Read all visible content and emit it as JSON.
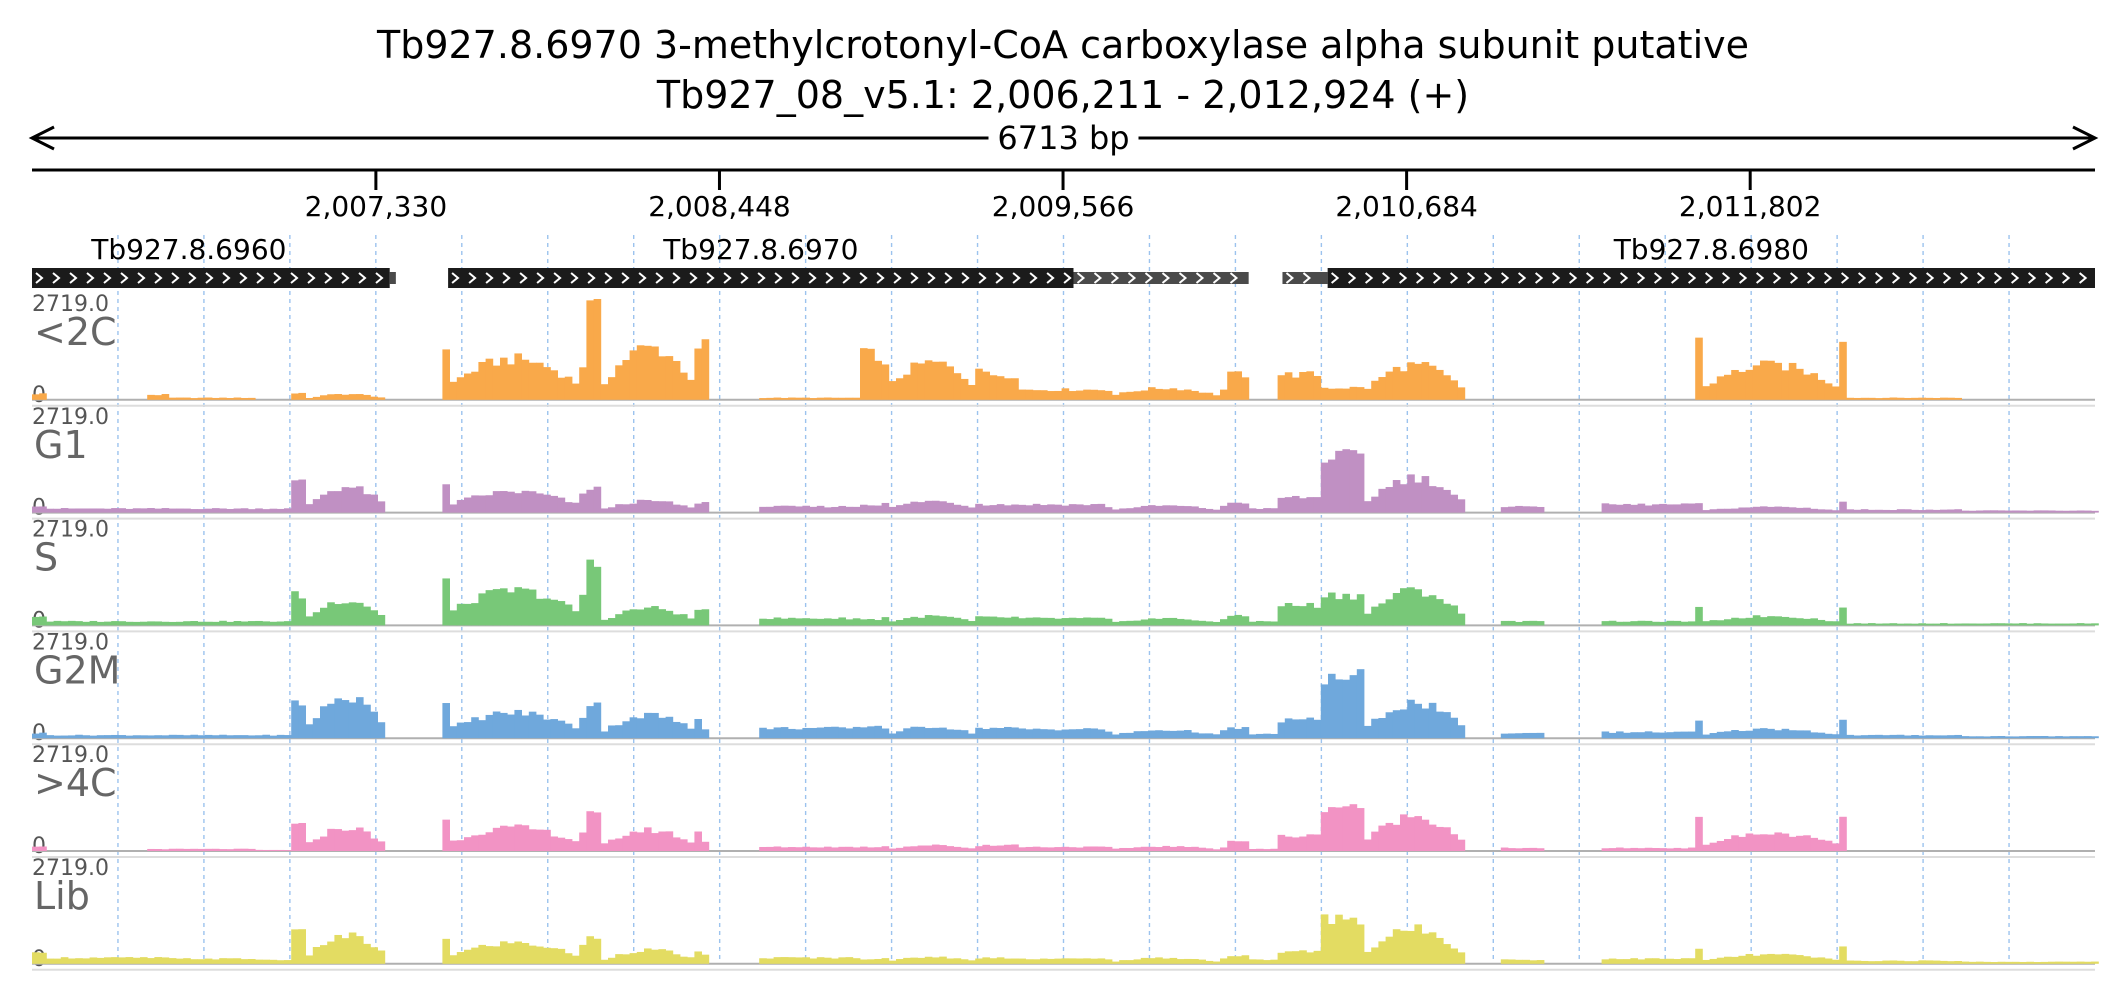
{
  "header": {
    "gene_title": "Tb927.8.6970  3-methylcrotonyl-CoA carboxylase alpha subunit  putative",
    "locus": "Tb927_08_v5.1: 2,006,211 - 2,012,924 (+)"
  },
  "chart_data": {
    "type": "area",
    "title": "Tb927.8.6970  3-methylcrotonyl-CoA carboxylase alpha subunit  putative",
    "subtitle": "Tb927_08_v5.1: 2,006,211 - 2,012,924 (+)",
    "span_label": "6713 bp",
    "xlim": [
      2006211,
      2012924
    ],
    "ylim": [
      0,
      2719.0
    ],
    "ymax_label": "2719.0",
    "ymin_label": "0",
    "x_ticks": [
      {
        "pos": 2007330,
        "label": "2,007,330"
      },
      {
        "pos": 2008448,
        "label": "2,008,448"
      },
      {
        "pos": 2009566,
        "label": "2,009,566"
      },
      {
        "pos": 2010684,
        "label": "2,010,684"
      },
      {
        "pos": 2011802,
        "label": "2,011,802"
      }
    ],
    "genes": [
      {
        "name": "Tb927.8.6960",
        "cds": [
          2006211,
          2007375
        ],
        "utr": [
          2007375,
          2007395
        ]
      },
      {
        "name": "Tb927.8.6970",
        "cds": [
          2007565,
          2009600
        ],
        "utr": [
          2009600,
          2010170
        ]
      },
      {
        "name": "Tb927.8.6980",
        "cds": [
          2010427,
          2012924
        ],
        "utr": [
          2010280,
          2010427
        ]
      }
    ],
    "segments": [
      {
        "start": 2006211,
        "end": 2006250,
        "base": [
          0.06,
          0.07,
          0.09,
          0.05,
          0.05,
          0.1
        ],
        "shape": "flat",
        "edges": [
          1,
          1
        ]
      },
      {
        "start": 2006250,
        "end": 2006580,
        "base": [
          0.0,
          0.04,
          0.04,
          0.03,
          0.0,
          0.06
        ],
        "shape": "flat",
        "edges": [
          1,
          1
        ]
      },
      {
        "start": 2006580,
        "end": 2006660,
        "base": [
          0.05,
          0.04,
          0.04,
          0.03,
          0.02,
          0.06
        ],
        "shape": "flat",
        "edges": [
          1,
          1
        ]
      },
      {
        "start": 2006660,
        "end": 2006940,
        "base": [
          0.02,
          0.04,
          0.04,
          0.03,
          0.02,
          0.05
        ],
        "shape": "flat",
        "edges": [
          1,
          1
        ]
      },
      {
        "start": 2006940,
        "end": 2007050,
        "base": [
          0.0,
          0.04,
          0.04,
          0.03,
          0.01,
          0.04
        ],
        "shape": "flat",
        "edges": [
          1,
          1
        ]
      },
      {
        "start": 2007050,
        "end": 2007100,
        "base": [
          0.06,
          0.3,
          0.3,
          0.35,
          0.25,
          0.3
        ],
        "shape": "flat",
        "edges": [
          1,
          1
        ]
      },
      {
        "start": 2007100,
        "end": 2007370,
        "base": [
          0.05,
          0.22,
          0.22,
          0.35,
          0.2,
          0.24
        ],
        "shape": "arch",
        "edges": [
          1.2,
          1.6
        ]
      },
      {
        "start": 2007540,
        "end": 2008020,
        "base": [
          0.35,
          0.18,
          0.3,
          0.22,
          0.2,
          0.18
        ],
        "shape": "arch",
        "edges": [
          1.5,
          1.0
        ]
      },
      {
        "start": 2008020,
        "end": 2008060,
        "base": [
          0.9,
          0.25,
          0.6,
          0.35,
          0.35,
          0.25
        ],
        "shape": "flat",
        "edges": [
          1,
          1
        ]
      },
      {
        "start": 2008060,
        "end": 2008380,
        "base": [
          0.45,
          0.1,
          0.15,
          0.2,
          0.18,
          0.12
        ],
        "shape": "arch",
        "edges": [
          1.0,
          1.0
        ]
      },
      {
        "start": 2008380,
        "end": 2008420,
        "base": [
          0.58,
          0.1,
          0.15,
          0.1,
          0.1,
          0.08
        ],
        "shape": "flat",
        "edges": [
          1,
          1
        ]
      },
      {
        "start": 2008570,
        "end": 2008900,
        "base": [
          0.02,
          0.06,
          0.07,
          0.1,
          0.04,
          0.06
        ],
        "shape": "flat",
        "edges": [
          1,
          1
        ]
      },
      {
        "start": 2008900,
        "end": 2008980,
        "base": [
          0.45,
          0.08,
          0.06,
          0.12,
          0.04,
          0.05
        ],
        "shape": "flat",
        "edges": [
          1,
          1
        ]
      },
      {
        "start": 2008980,
        "end": 2009300,
        "base": [
          0.32,
          0.1,
          0.08,
          0.1,
          0.05,
          0.06
        ],
        "shape": "arch",
        "edges": [
          1.0,
          1.0
        ]
      },
      {
        "start": 2009300,
        "end": 2009420,
        "base": [
          0.25,
          0.08,
          0.08,
          0.1,
          0.06,
          0.06
        ],
        "shape": "flat",
        "edges": [
          1,
          1
        ]
      },
      {
        "start": 2009420,
        "end": 2009700,
        "base": [
          0.1,
          0.08,
          0.07,
          0.09,
          0.04,
          0.05
        ],
        "shape": "flat",
        "edges": [
          1,
          1
        ]
      },
      {
        "start": 2009700,
        "end": 2010100,
        "base": [
          0.1,
          0.06,
          0.06,
          0.07,
          0.04,
          0.05
        ],
        "shape": "arch",
        "edges": [
          1.0,
          1.0
        ]
      },
      {
        "start": 2010100,
        "end": 2010170,
        "base": [
          0.25,
          0.1,
          0.1,
          0.1,
          0.1,
          0.08
        ],
        "shape": "flat",
        "edges": [
          1,
          1
        ]
      },
      {
        "start": 2010170,
        "end": 2010270,
        "base": [
          0.0,
          0.04,
          0.04,
          0.04,
          0.02,
          0.04
        ],
        "shape": "flat",
        "edges": [
          1,
          1
        ]
      },
      {
        "start": 2010270,
        "end": 2010410,
        "base": [
          0.25,
          0.15,
          0.2,
          0.18,
          0.15,
          0.12
        ],
        "shape": "flat",
        "edges": [
          1,
          1
        ]
      },
      {
        "start": 2010410,
        "end": 2010540,
        "base": [
          0.12,
          0.55,
          0.3,
          0.6,
          0.45,
          0.45
        ],
        "shape": "flat",
        "edges": [
          1,
          1
        ]
      },
      {
        "start": 2010540,
        "end": 2010880,
        "base": [
          0.3,
          0.3,
          0.3,
          0.3,
          0.3,
          0.3
        ],
        "shape": "arch",
        "edges": [
          1.2,
          1.6
        ]
      },
      {
        "start": 2011000,
        "end": 2011140,
        "base": [
          0.0,
          0.06,
          0.04,
          0.05,
          0.03,
          0.04
        ],
        "shape": "flat",
        "edges": [
          1,
          1
        ]
      },
      {
        "start": 2011320,
        "end": 2011620,
        "base": [
          0.0,
          0.08,
          0.04,
          0.06,
          0.03,
          0.05
        ],
        "shape": "flat",
        "edges": [
          1,
          1
        ]
      },
      {
        "start": 2011620,
        "end": 2012120,
        "base": [
          0.3,
          0.05,
          0.08,
          0.08,
          0.15,
          0.08
        ],
        "shape": "arch",
        "edges": [
          2.0,
          2.2
        ]
      },
      {
        "start": 2012120,
        "end": 2012500,
        "base": [
          0.02,
          0.03,
          0.02,
          0.03,
          0.0,
          0.03
        ],
        "shape": "flat",
        "edges": [
          1,
          1
        ]
      },
      {
        "start": 2012500,
        "end": 2012924,
        "base": [
          0.0,
          0.02,
          0.02,
          0.02,
          0.0,
          0.02
        ],
        "shape": "flat",
        "edges": [
          1,
          1
        ]
      }
    ],
    "series": [
      {
        "name": "<2C",
        "color": "#f9a94a"
      },
      {
        "name": "G1",
        "color": "#c090c3"
      },
      {
        "name": "S",
        "color": "#78c878"
      },
      {
        "name": "G2M",
        "color": "#6fa8dc"
      },
      {
        "name": ">4C",
        "color": "#f293c4"
      },
      {
        "name": "Lib",
        "color": "#e3dc62"
      }
    ]
  }
}
